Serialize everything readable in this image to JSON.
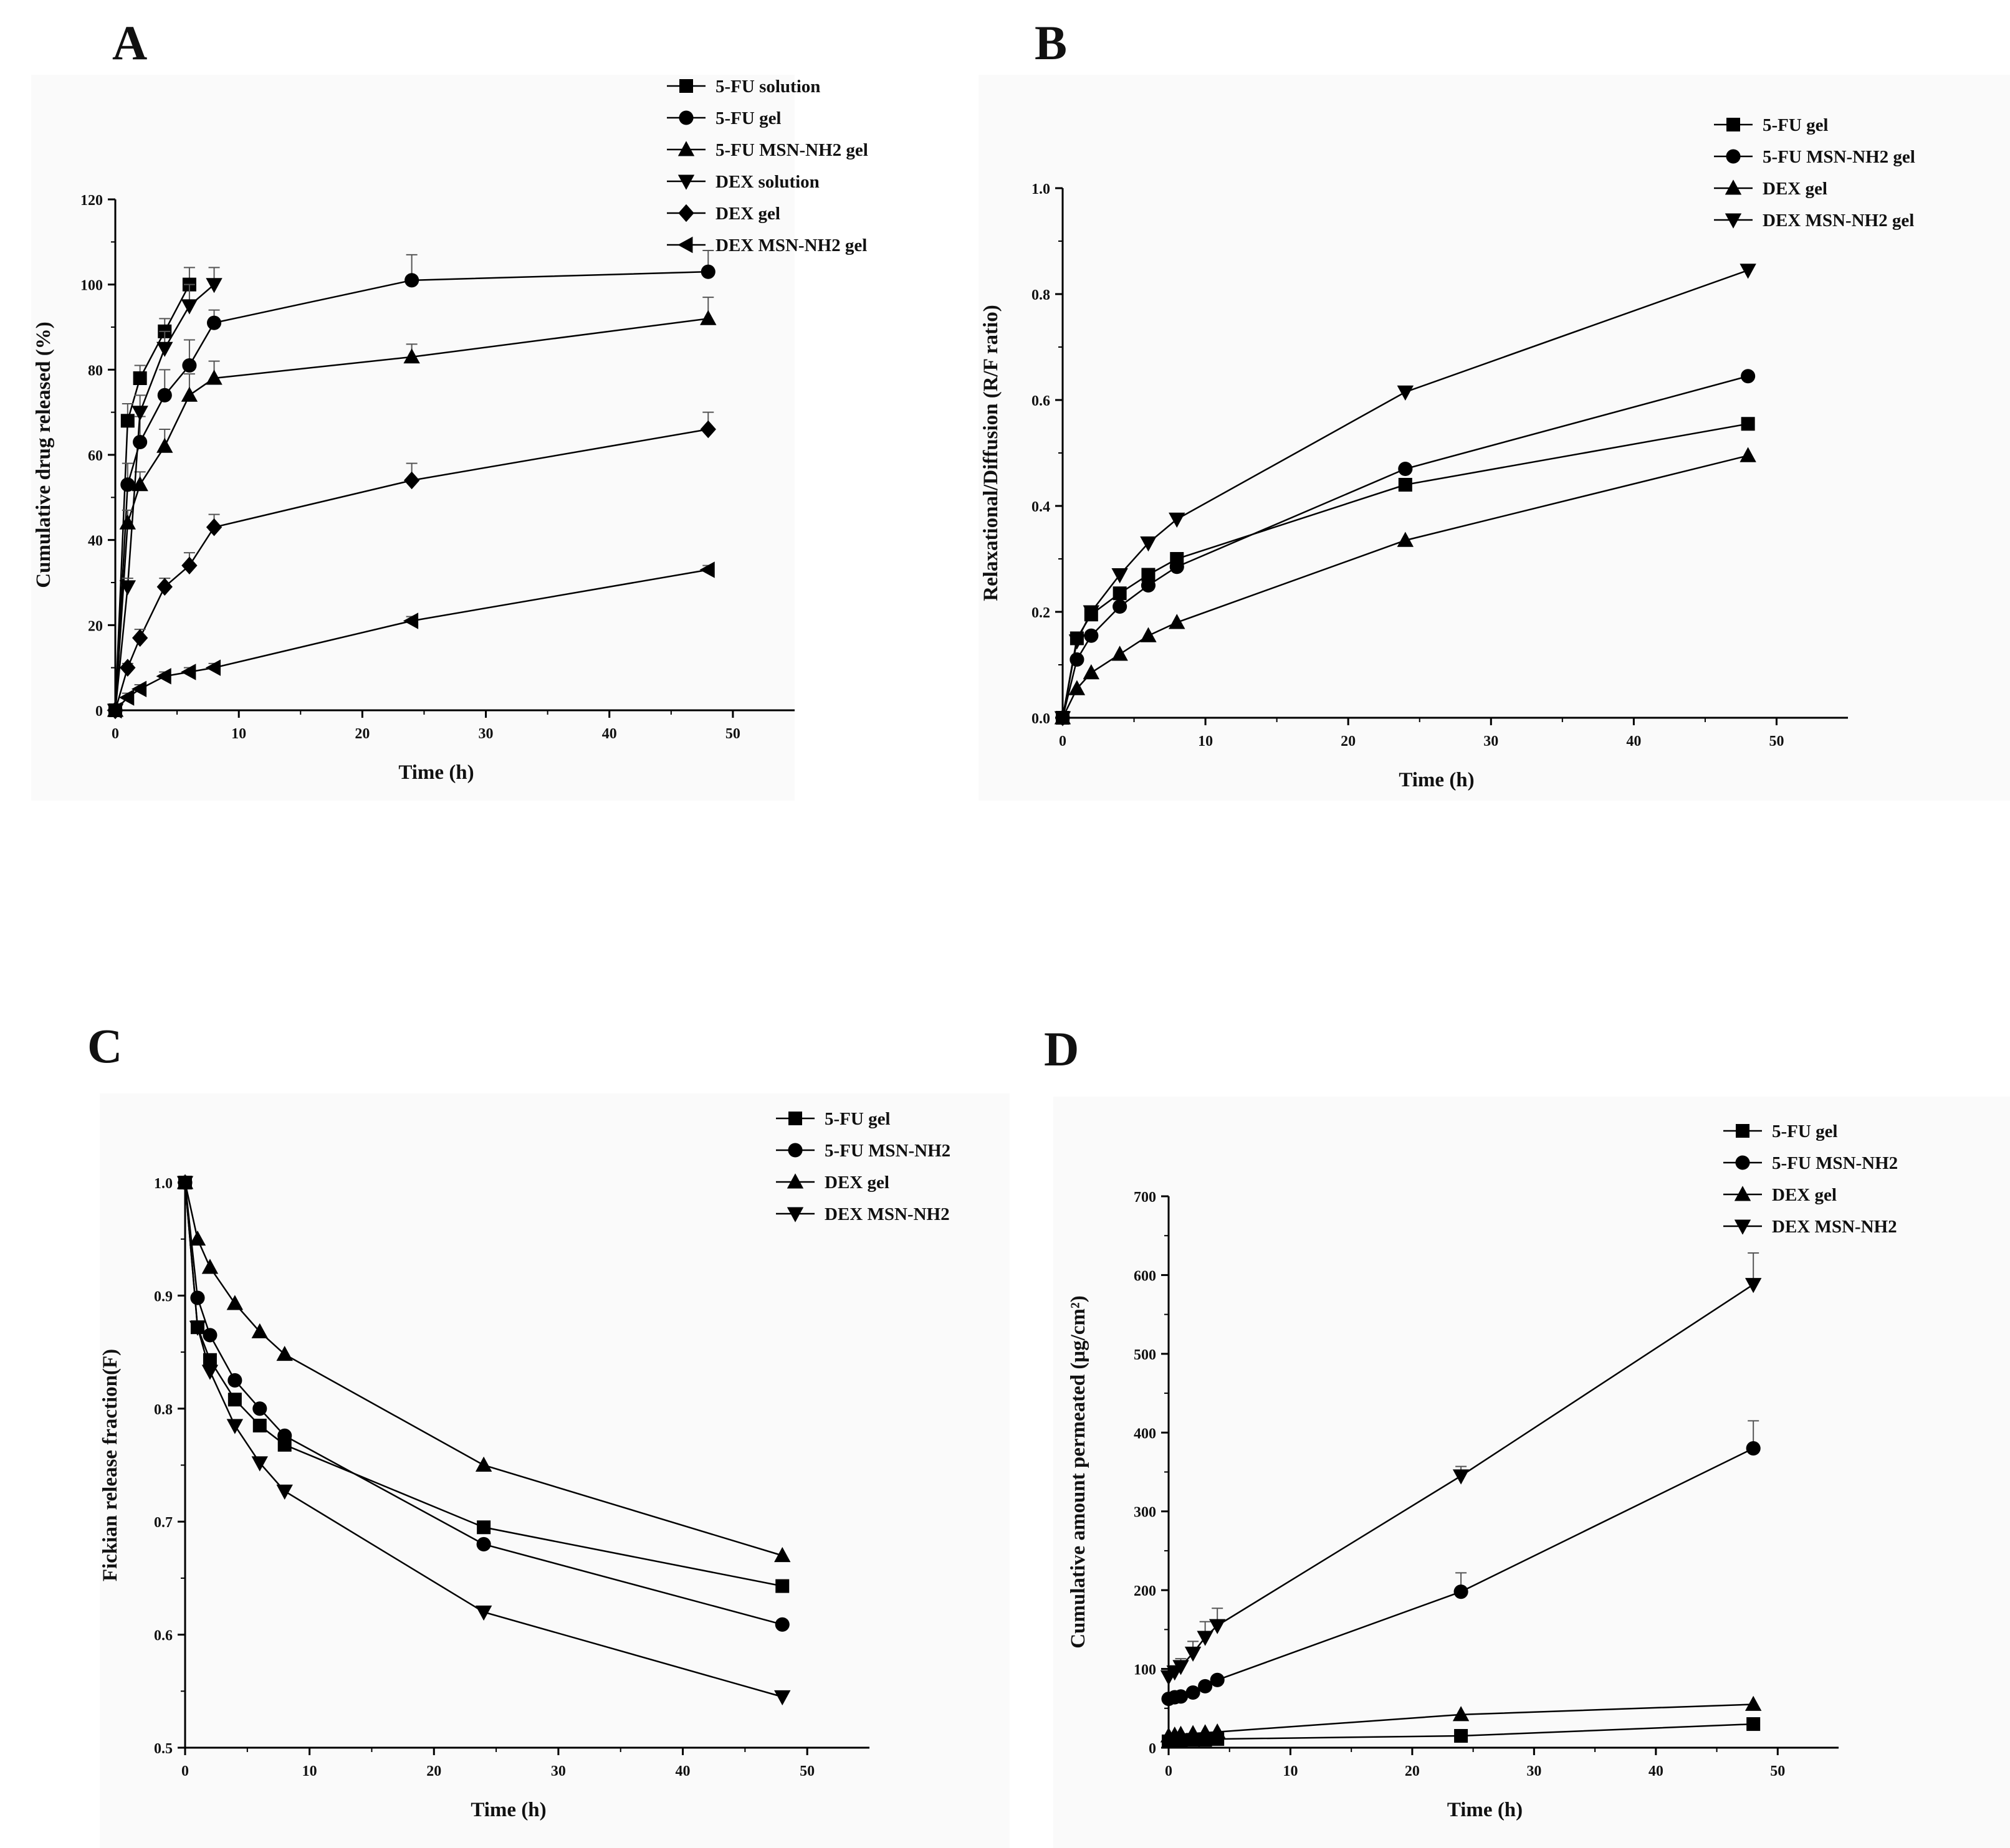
{
  "figure": {
    "panels": [
      {
        "id": "A",
        "letter": "A",
        "chart_data": {
          "type": "line",
          "xlabel": "Time (h)",
          "ylabel": "Cumulative drug released (%)",
          "xlim": [
            0,
            55
          ],
          "ylim": [
            0,
            120
          ],
          "xticks": [
            0,
            10,
            20,
            30,
            40,
            50
          ],
          "yticks": [
            0,
            20,
            40,
            60,
            80,
            100,
            120
          ],
          "error_bars": true,
          "legend_position": "top-right",
          "series": [
            {
              "name": "5-FU solution",
              "marker": "square",
              "x": [
                0,
                1,
                2,
                4,
                6
              ],
              "y": [
                0,
                68,
                78,
                89,
                100
              ],
              "err": [
                0,
                4,
                3,
                3,
                4
              ]
            },
            {
              "name": "5-FU gel",
              "marker": "circle",
              "x": [
                0,
                1,
                2,
                4,
                6,
                8,
                24,
                48
              ],
              "y": [
                0,
                53,
                63,
                74,
                81,
                91,
                101,
                103
              ],
              "err": [
                0,
                5,
                6,
                6,
                6,
                3,
                6,
                5
              ]
            },
            {
              "name": "5-FU MSN-NH2 gel",
              "marker": "triangle-up",
              "x": [
                0,
                1,
                2,
                4,
                6,
                8,
                24,
                48
              ],
              "y": [
                0,
                44,
                53,
                62,
                74,
                78,
                83,
                92
              ],
              "err": [
                0,
                3,
                3,
                4,
                5,
                4,
                3,
                5
              ]
            },
            {
              "name": "DEX solution",
              "marker": "triangle-down",
              "x": [
                0,
                1,
                2,
                4,
                6,
                8
              ],
              "y": [
                0,
                29,
                70,
                85,
                95,
                100
              ],
              "err": [
                0,
                2,
                4,
                4,
                5,
                4
              ]
            },
            {
              "name": "DEX gel",
              "marker": "diamond",
              "x": [
                0,
                1,
                2,
                4,
                6,
                8,
                24,
                48
              ],
              "y": [
                0,
                10,
                17,
                29,
                34,
                43,
                54,
                66
              ],
              "err": [
                0,
                1,
                2,
                2,
                3,
                3,
                4,
                4
              ]
            },
            {
              "name": "DEX MSN-NH2 gel",
              "marker": "triangle-left",
              "x": [
                0,
                1,
                2,
                4,
                6,
                8,
                24,
                48
              ],
              "y": [
                0,
                3,
                5,
                8,
                9,
                10,
                21,
                33
              ],
              "err": [
                0,
                1,
                1,
                1,
                1,
                1,
                1,
                1
              ]
            }
          ]
        }
      },
      {
        "id": "B",
        "letter": "B",
        "chart_data": {
          "type": "line",
          "xlabel": "Time (h)",
          "ylabel": "Relaxational/Diffusion (R/F ratio)",
          "xlim": [
            0,
            55
          ],
          "ylim": [
            0,
            1
          ],
          "xticks": [
            0,
            10,
            20,
            30,
            40,
            50
          ],
          "yticks": [
            0.0,
            0.2,
            0.4,
            0.6,
            0.8,
            1.0
          ],
          "ytick_labels": [
            "0.0",
            "0.2",
            "0.4",
            "0.6",
            "0.8",
            "1.0"
          ],
          "error_bars": false,
          "legend_position": "top-right",
          "series": [
            {
              "name": "5-FU gel",
              "marker": "square",
              "x": [
                0,
                1,
                2,
                4,
                6,
                8,
                24,
                48
              ],
              "y": [
                0,
                0.15,
                0.195,
                0.235,
                0.27,
                0.3,
                0.44,
                0.555
              ]
            },
            {
              "name": "5-FU MSN-NH2 gel",
              "marker": "circle",
              "x": [
                0,
                1,
                2,
                4,
                6,
                8,
                24,
                48
              ],
              "y": [
                0,
                0.11,
                0.155,
                0.21,
                0.25,
                0.285,
                0.47,
                0.645
              ]
            },
            {
              "name": "DEX gel",
              "marker": "triangle-up",
              "x": [
                0,
                1,
                2,
                4,
                6,
                8,
                24,
                48
              ],
              "y": [
                0,
                0.055,
                0.085,
                0.12,
                0.155,
                0.18,
                0.335,
                0.495
              ]
            },
            {
              "name": "DEX MSN-NH2 gel",
              "marker": "triangle-down",
              "x": [
                0,
                1,
                2,
                4,
                6,
                8,
                24,
                48
              ],
              "y": [
                0,
                0.145,
                0.2,
                0.27,
                0.33,
                0.375,
                0.615,
                0.845
              ]
            }
          ]
        }
      },
      {
        "id": "C",
        "letter": "C",
        "chart_data": {
          "type": "line",
          "xlabel": "Time (h)",
          "ylabel": "Fickian release fraction(F)",
          "xlim": [
            0,
            55
          ],
          "ylim": [
            0.5,
            1
          ],
          "xticks": [
            0,
            10,
            20,
            30,
            40,
            50
          ],
          "yticks": [
            0.5,
            0.6,
            0.7,
            0.8,
            0.9,
            1.0
          ],
          "ytick_labels": [
            "0.5",
            "0.6",
            "0.7",
            "0.8",
            "0.9",
            "1.0"
          ],
          "error_bars": false,
          "legend_position": "top-right",
          "series": [
            {
              "name": "5-FU gel",
              "marker": "square",
              "x": [
                0,
                1,
                2,
                4,
                6,
                8,
                24,
                48
              ],
              "y": [
                1.0,
                0.872,
                0.843,
                0.808,
                0.785,
                0.768,
                0.695,
                0.643
              ]
            },
            {
              "name": "5-FU MSN-NH2",
              "marker": "circle",
              "x": [
                0,
                1,
                2,
                4,
                6,
                8,
                24,
                48
              ],
              "y": [
                1.0,
                0.898,
                0.865,
                0.825,
                0.8,
                0.776,
                0.68,
                0.609
              ]
            },
            {
              "name": "DEX gel",
              "marker": "triangle-up",
              "x": [
                0,
                1,
                2,
                4,
                6,
                8,
                24,
                48
              ],
              "y": [
                1.0,
                0.95,
                0.925,
                0.893,
                0.868,
                0.848,
                0.75,
                0.67
              ]
            },
            {
              "name": "DEX MSN-NH2",
              "marker": "triangle-down",
              "x": [
                0,
                1,
                2,
                4,
                6,
                8,
                24,
                48
              ],
              "y": [
                1.0,
                0.872,
                0.833,
                0.785,
                0.752,
                0.727,
                0.62,
                0.545
              ]
            }
          ]
        }
      },
      {
        "id": "D",
        "letter": "D",
        "chart_data": {
          "type": "line",
          "xlabel": "Time (h)",
          "ylabel": "Cumulative amount permeated (μg/cm²)",
          "xlim": [
            0,
            55
          ],
          "ylim": [
            0,
            700
          ],
          "xticks": [
            0,
            10,
            20,
            30,
            40,
            50
          ],
          "yticks": [
            0,
            100,
            200,
            300,
            400,
            500,
            600,
            700
          ],
          "error_bars": true,
          "legend_position": "top-right",
          "series": [
            {
              "name": "5-FU gel",
              "marker": "square",
              "x": [
                0,
                0.5,
                1,
                2,
                3,
                4,
                24,
                48
              ],
              "y": [
                8,
                9,
                9,
                10,
                10,
                11,
                15,
                30
              ],
              "err": [
                0,
                0,
                0,
                0,
                0,
                0,
                0,
                0
              ]
            },
            {
              "name": "5-FU MSN-NH2",
              "marker": "circle",
              "x": [
                0,
                0.5,
                1,
                2,
                3,
                4,
                24,
                48
              ],
              "y": [
                62,
                64,
                65,
                70,
                78,
                86,
                198,
                380
              ],
              "err": [
                3,
                3,
                3,
                3,
                3,
                3,
                24,
                35
              ]
            },
            {
              "name": "DEX gel",
              "marker": "triangle-up",
              "x": [
                0,
                0.5,
                1,
                2,
                3,
                4,
                24,
                48
              ],
              "y": [
                15,
                16,
                17,
                18,
                19,
                20,
                42,
                55
              ],
              "err": [
                0,
                0,
                0,
                0,
                0,
                0,
                0,
                0
              ]
            },
            {
              "name": "DEX MSN-NH2",
              "marker": "triangle-down",
              "x": [
                0,
                0.5,
                1,
                2,
                3,
                4,
                24,
                48
              ],
              "y": [
                90,
                96,
                103,
                120,
                140,
                155,
                345,
                588
              ],
              "err": [
                5,
                8,
                10,
                15,
                20,
                22,
                12,
                40
              ]
            }
          ]
        }
      }
    ]
  }
}
